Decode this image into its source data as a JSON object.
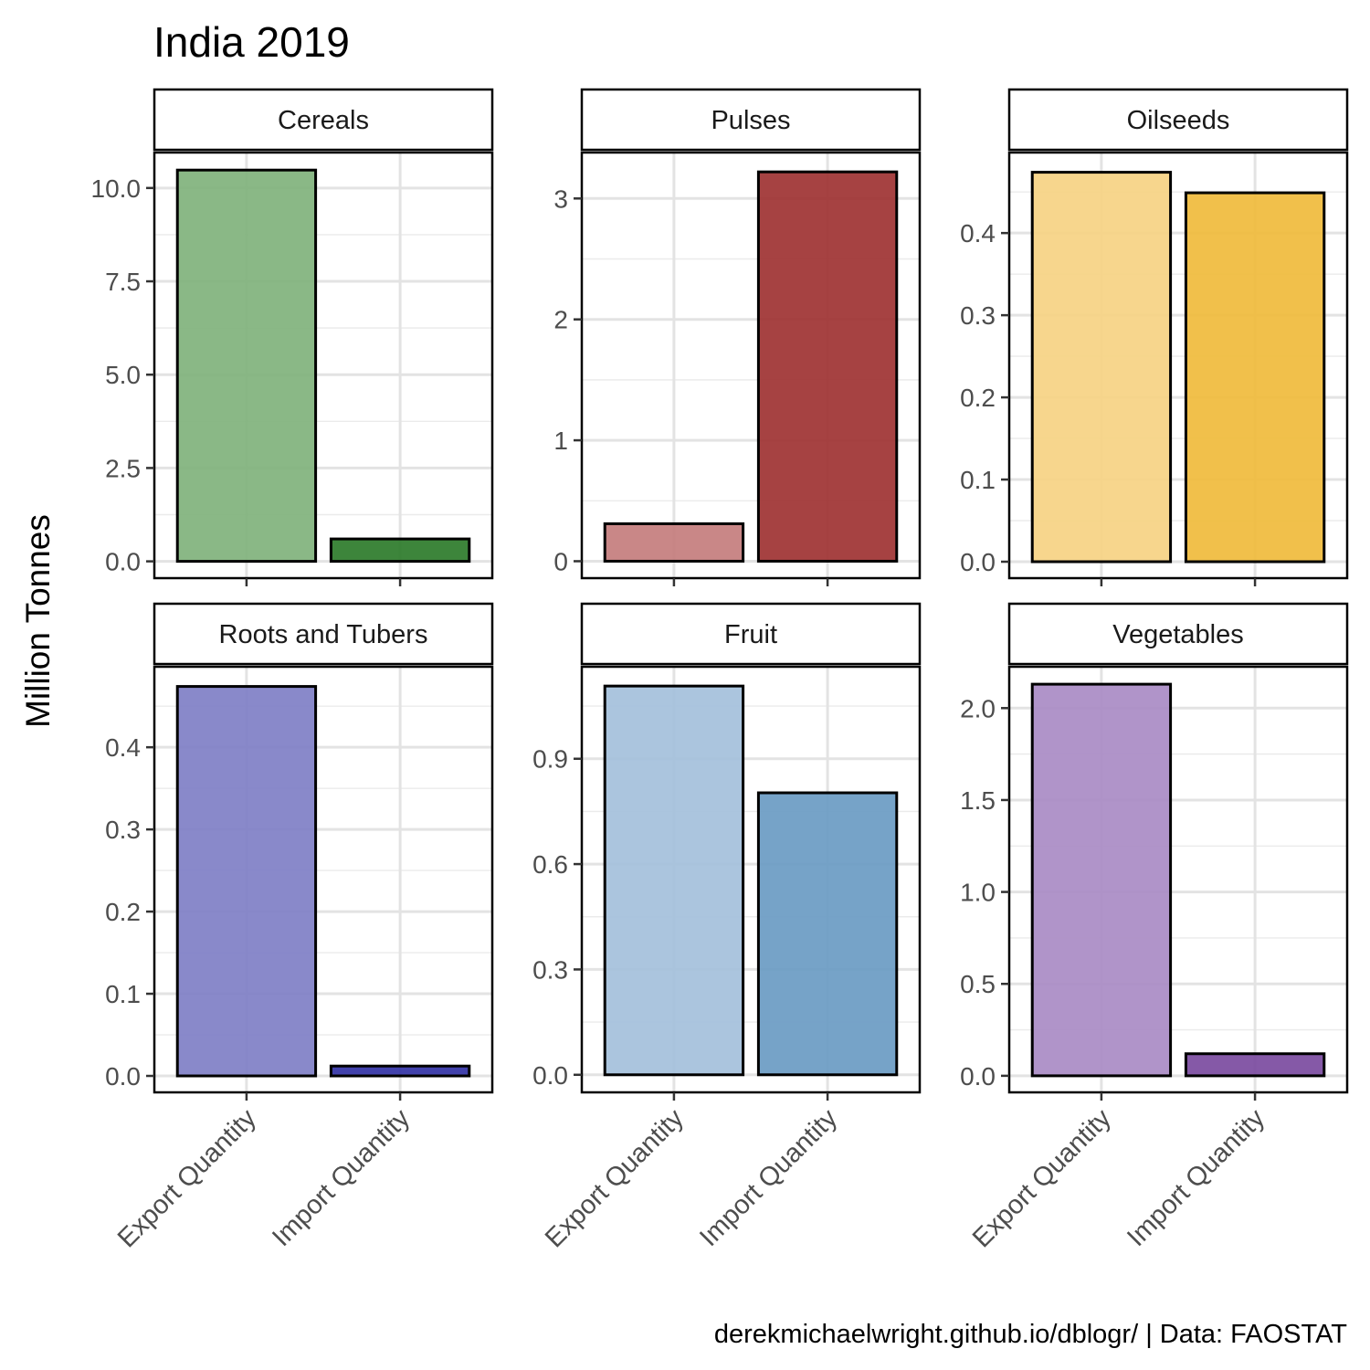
{
  "chart_data": {
    "type": "bar",
    "title": "India 2019",
    "caption": "derekmichaelwright.github.io/dblogr/ | Data: FAOSTAT",
    "ylabel": "Million Tonnes",
    "categories": [
      "Export Quantity",
      "Import Quantity"
    ],
    "grid": true,
    "panels": [
      {
        "name": "Cereals",
        "values": [
          10.48,
          0.6
        ],
        "ylim": [
          -0.45,
          10.95
        ],
        "yticks": [
          "0.0",
          "2.5",
          "5.0",
          "7.5",
          "10.0"
        ],
        "ytick_values": [
          0,
          2.5,
          5,
          7.5,
          10
        ],
        "colors": [
          "#80b27c",
          "#2d7b2a"
        ]
      },
      {
        "name": "Pulses",
        "values": [
          0.31,
          3.22
        ],
        "ylim": [
          -0.14,
          3.38
        ],
        "yticks": [
          "0",
          "1",
          "2",
          "3"
        ],
        "ytick_values": [
          0,
          1,
          2,
          3
        ],
        "colors": [
          "#c47d7d",
          "#9e3232"
        ]
      },
      {
        "name": "Oilseeds",
        "values": [
          0.474,
          0.449
        ],
        "ylim": [
          -0.02,
          0.498
        ],
        "yticks": [
          "0.0",
          "0.1",
          "0.2",
          "0.3",
          "0.4"
        ],
        "ytick_values": [
          0,
          0.1,
          0.2,
          0.3,
          0.4
        ],
        "colors": [
          "#f6d383",
          "#f0bb3c"
        ]
      },
      {
        "name": "Roots and Tubers",
        "values": [
          0.474,
          0.012
        ],
        "ylim": [
          -0.02,
          0.498
        ],
        "yticks": [
          "0.0",
          "0.1",
          "0.2",
          "0.3",
          "0.4"
        ],
        "ytick_values": [
          0,
          0.1,
          0.2,
          0.3,
          0.4
        ],
        "colors": [
          "#7f7fc5",
          "#3232a5"
        ]
      },
      {
        "name": "Fruit",
        "values": [
          1.107,
          0.803
        ],
        "ylim": [
          -0.05,
          1.162
        ],
        "yticks": [
          "0.0",
          "0.3",
          "0.6",
          "0.9"
        ],
        "ytick_values": [
          0,
          0.3,
          0.6,
          0.9
        ],
        "colors": [
          "#a4c0db",
          "#6a9bc3"
        ]
      },
      {
        "name": "Vegetables",
        "values": [
          2.13,
          0.12
        ],
        "ylim": [
          -0.09,
          2.225
        ],
        "yticks": [
          "0.0",
          "0.5",
          "1.0",
          "1.5",
          "2.0"
        ],
        "ytick_values": [
          0,
          0.5,
          1,
          1.5,
          2
        ],
        "colors": [
          "#a98bc4",
          "#7b4b9f"
        ]
      }
    ]
  }
}
